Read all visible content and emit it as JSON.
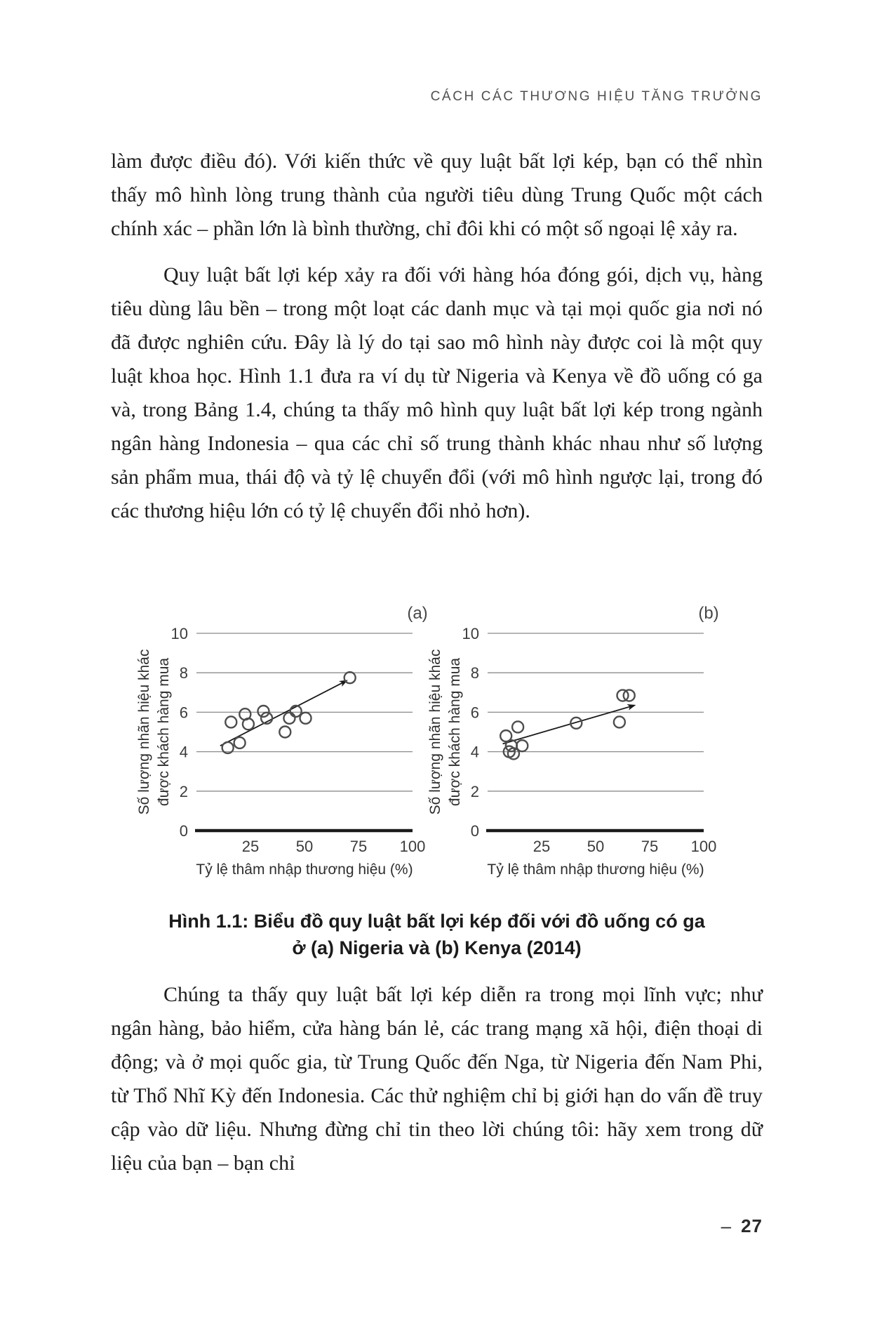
{
  "page": {
    "header": "CÁCH CÁC THƯƠNG HIỆU TĂNG TRƯỞNG",
    "page_number_dash": "–",
    "page_number": "27"
  },
  "paragraphs": {
    "p1": "làm được điều đó). Với kiến thức về quy luật bất lợi kép, bạn có thể nhìn thấy mô hình lòng trung thành của người tiêu dùng Trung Quốc một cách chính xác – phần lớn là bình thường, chỉ đôi khi có một số ngoại lệ xảy ra.",
    "p2": "Quy luật bất lợi kép xảy ra đối với hàng hóa đóng gói, dịch vụ, hàng tiêu dùng lâu bền – trong một loạt các danh mục và tại mọi quốc gia nơi nó đã được nghiên cứu. Đây là lý do tại sao mô hình này được coi là một quy luật khoa học. Hình 1.1 đưa ra ví dụ từ Nigeria và Kenya về đồ uống có ga và, trong Bảng 1.4, chúng ta thấy mô hình quy luật bất lợi kép trong ngành ngân hàng Indonesia – qua các chỉ số trung thành khác nhau như số lượng sản phẩm mua, thái độ và tỷ lệ chuyển đổi (với mô hình ngược lại, trong đó các thương hiệu lớn có tỷ lệ chuyển đổi nhỏ hơn).",
    "p3": "Chúng ta thấy quy luật bất lợi kép diễn ra trong mọi lĩnh vực; như ngân hàng, bảo hiểm, cửa hàng bán lẻ, các trang mạng xã hội, điện thoại di động; và ở mọi quốc gia, từ Trung Quốc đến Nga, từ Nigeria đến Nam Phi, từ Thổ Nhĩ Kỳ đến Indonesia. Các thử nghiệm chỉ bị giới hạn do vấn đề truy cập vào dữ liệu. Nhưng đừng chỉ tin theo lời chúng tôi: hãy xem trong dữ liệu của bạn – bạn chỉ"
  },
  "figure": {
    "caption_line1": "Hình 1.1: Biểu đồ quy luật bất lợi kép đối với đồ uống có ga",
    "caption_line2": "ở (a) Nigeria và (b) Kenya (2014)"
  },
  "chart_data": [
    {
      "type": "scatter",
      "panel_label": "(a)",
      "xlabel": "Tỷ lệ thâm nhập thương hiệu (%)",
      "ylabel_line1": "Số lượng nhãn hiệu khác",
      "ylabel_line2": "được khách hàng mua",
      "xlim": [
        0,
        100
      ],
      "ylim": [
        0,
        10
      ],
      "xticks": [
        25,
        50,
        75,
        100
      ],
      "yticks": [
        0,
        2,
        4,
        6,
        8,
        10
      ],
      "grid": "horizontal",
      "legend": "none",
      "points": [
        [
          14.5,
          4.2
        ],
        [
          16,
          5.5
        ],
        [
          20,
          4.45
        ],
        [
          22.5,
          5.9
        ],
        [
          24,
          5.4
        ],
        [
          31,
          6.05
        ],
        [
          32.5,
          5.7
        ],
        [
          41,
          5.0
        ],
        [
          43,
          5.7
        ],
        [
          46,
          6.05
        ],
        [
          50.5,
          5.7
        ],
        [
          71,
          7.75
        ]
      ],
      "trend_arrow": {
        "from": [
          11,
          4.3
        ],
        "to": [
          69.5,
          7.6
        ]
      }
    },
    {
      "type": "scatter",
      "panel_label": "(b)",
      "xlabel": "Tỷ lệ thâm nhập thương hiệu (%)",
      "ylabel_line1": "Số lượng nhãn hiệu khác",
      "ylabel_line2": "được khách hàng mua",
      "xlim": [
        0,
        100
      ],
      "ylim": [
        0,
        10
      ],
      "xticks": [
        25,
        50,
        75,
        100
      ],
      "yticks": [
        0,
        2,
        4,
        6,
        8,
        10
      ],
      "grid": "horizontal",
      "legend": "none",
      "points": [
        [
          8.5,
          4.8
        ],
        [
          10,
          4.0
        ],
        [
          11,
          4.3
        ],
        [
          12,
          3.9
        ],
        [
          14,
          5.25
        ],
        [
          16,
          4.3
        ],
        [
          41,
          5.45
        ],
        [
          61,
          5.5
        ],
        [
          62.5,
          6.85
        ],
        [
          65.5,
          6.85
        ]
      ],
      "trend_arrow": {
        "from": [
          7,
          4.4
        ],
        "to": [
          68,
          6.35
        ]
      }
    }
  ],
  "style": {
    "grid_color": "#8b8b8b",
    "baseline_color": "#1a1a1a",
    "point_color": "#4d4d4d",
    "arrow_color": "#1a1a1a",
    "tick_color": "#3c3c3c",
    "label_color": "#2e2e2e",
    "panel_label_color": "#474747"
  }
}
